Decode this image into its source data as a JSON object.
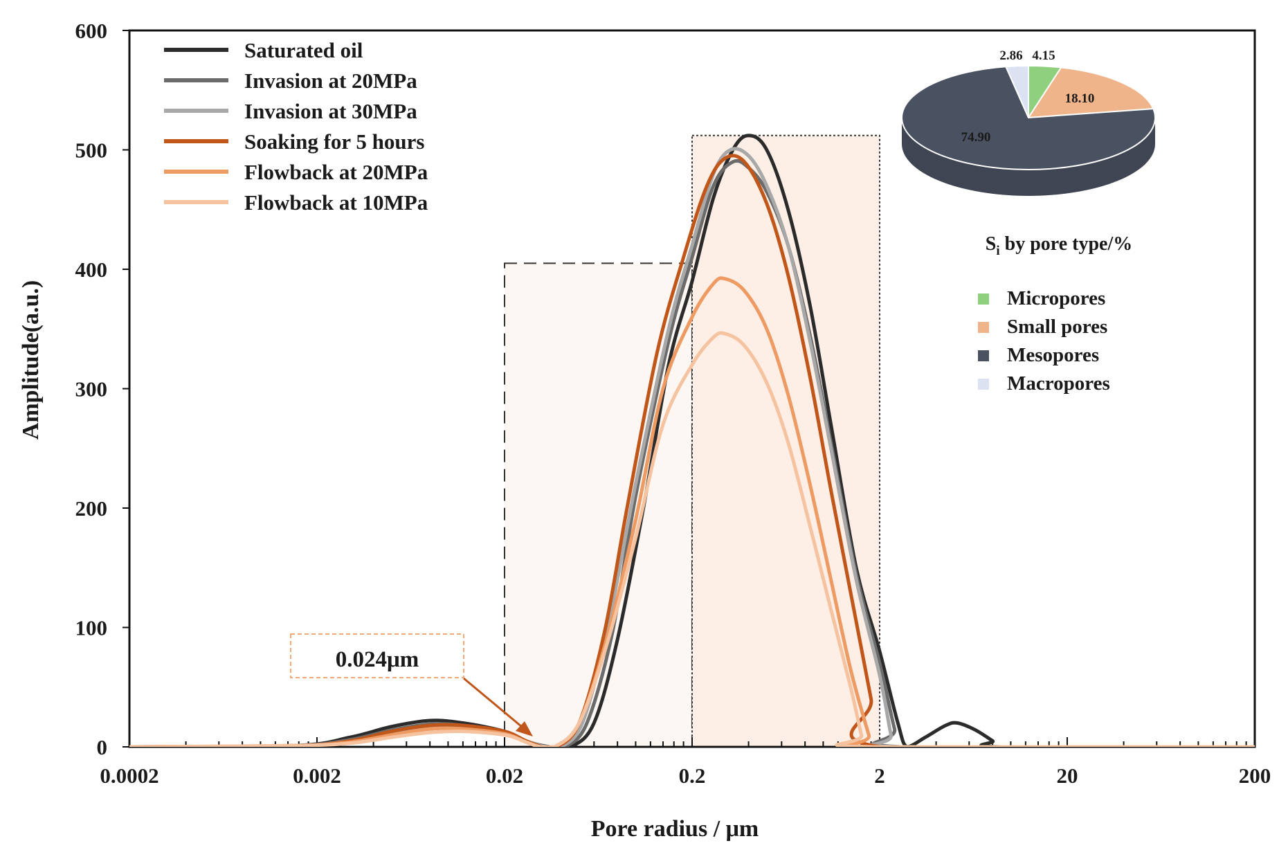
{
  "chart_data": {
    "type": "line",
    "xscale": "log",
    "xlim": [
      0.0002,
      200
    ],
    "ylim": [
      0,
      600
    ],
    "xlabel": "Pore radius  / μm",
    "ylabel": "Amplitude(a.u.)",
    "x_ticks": [
      "0.0002",
      "0.002",
      "0.02",
      "0.2",
      "2",
      "20",
      "200"
    ],
    "y_ticks": [
      "0",
      "100",
      "200",
      "300",
      "400",
      "500",
      "600"
    ],
    "grid": false,
    "legend_position": "top-left",
    "annotation": {
      "text": "0.024μm",
      "x": 0.024,
      "y": 5
    },
    "series": [
      {
        "name": "Saturated oil",
        "color": "#2b2b2b",
        "points": [
          [
            0.0002,
            0
          ],
          [
            0.0015,
            1
          ],
          [
            0.003,
            8
          ],
          [
            0.005,
            17
          ],
          [
            0.008,
            22
          ],
          [
            0.012,
            20
          ],
          [
            0.02,
            13
          ],
          [
            0.027,
            4
          ],
          [
            0.035,
            0
          ],
          [
            0.045,
            0
          ],
          [
            0.06,
            20
          ],
          [
            0.08,
            90
          ],
          [
            0.11,
            200
          ],
          [
            0.15,
            320
          ],
          [
            0.2,
            390
          ],
          [
            0.26,
            460
          ],
          [
            0.33,
            500
          ],
          [
            0.4,
            512
          ],
          [
            0.5,
            500
          ],
          [
            0.65,
            450
          ],
          [
            0.85,
            370
          ],
          [
            1.1,
            270
          ],
          [
            1.5,
            150
          ],
          [
            2,
            80
          ],
          [
            2.5,
            20
          ],
          [
            2.8,
            0
          ],
          [
            3.5,
            8
          ],
          [
            4.5,
            18
          ],
          [
            5.2,
            20
          ],
          [
            6.5,
            14
          ],
          [
            8,
            5
          ],
          [
            9,
            0
          ],
          [
            200,
            0
          ]
        ]
      },
      {
        "name": "Invasion at 20MPa",
        "color": "#6b6b6b",
        "points": [
          [
            0.0002,
            0
          ],
          [
            0.0015,
            1
          ],
          [
            0.003,
            6
          ],
          [
            0.005,
            14
          ],
          [
            0.008,
            19
          ],
          [
            0.012,
            18
          ],
          [
            0.02,
            12
          ],
          [
            0.027,
            4
          ],
          [
            0.034,
            0
          ],
          [
            0.042,
            0
          ],
          [
            0.055,
            20
          ],
          [
            0.075,
            95
          ],
          [
            0.1,
            210
          ],
          [
            0.15,
            340
          ],
          [
            0.2,
            410
          ],
          [
            0.26,
            470
          ],
          [
            0.33,
            490
          ],
          [
            0.4,
            485
          ],
          [
            0.5,
            465
          ],
          [
            0.65,
            420
          ],
          [
            0.85,
            345
          ],
          [
            1.1,
            255
          ],
          [
            1.5,
            145
          ],
          [
            2,
            70
          ],
          [
            2.4,
            15
          ],
          [
            2.6,
            0
          ],
          [
            200,
            0
          ]
        ]
      },
      {
        "name": "Invasion at 30MPa",
        "color": "#a8a8a8",
        "points": [
          [
            0.0002,
            0
          ],
          [
            0.0015,
            1
          ],
          [
            0.003,
            5
          ],
          [
            0.005,
            12
          ],
          [
            0.008,
            17
          ],
          [
            0.012,
            17
          ],
          [
            0.02,
            11
          ],
          [
            0.027,
            4
          ],
          [
            0.033,
            0
          ],
          [
            0.04,
            0
          ],
          [
            0.052,
            20
          ],
          [
            0.07,
            95
          ],
          [
            0.1,
            220
          ],
          [
            0.15,
            350
          ],
          [
            0.2,
            420
          ],
          [
            0.26,
            480
          ],
          [
            0.32,
            500
          ],
          [
            0.4,
            495
          ],
          [
            0.5,
            470
          ],
          [
            0.65,
            420
          ],
          [
            0.85,
            340
          ],
          [
            1.1,
            250
          ],
          [
            1.5,
            140
          ],
          [
            2,
            60
          ],
          [
            2.3,
            10
          ],
          [
            2.45,
            0
          ],
          [
            200,
            0
          ]
        ]
      },
      {
        "name": "Soaking for 5 hours",
        "color": "#c0561a",
        "points": [
          [
            0.0002,
            0
          ],
          [
            0.0015,
            1
          ],
          [
            0.003,
            5
          ],
          [
            0.005,
            13
          ],
          [
            0.008,
            18
          ],
          [
            0.012,
            18
          ],
          [
            0.02,
            13
          ],
          [
            0.026,
            5
          ],
          [
            0.032,
            0
          ],
          [
            0.038,
            0
          ],
          [
            0.05,
            20
          ],
          [
            0.068,
            95
          ],
          [
            0.09,
            200
          ],
          [
            0.13,
            330
          ],
          [
            0.18,
            410
          ],
          [
            0.24,
            470
          ],
          [
            0.3,
            493
          ],
          [
            0.38,
            490
          ],
          [
            0.5,
            455
          ],
          [
            0.65,
            395
          ],
          [
            0.85,
            310
          ],
          [
            1.1,
            215
          ],
          [
            1.5,
            105
          ],
          [
            1.8,
            40
          ],
          [
            2.05,
            0
          ],
          [
            200,
            0
          ]
        ]
      },
      {
        "name": "Flowback at 20MPa",
        "color": "#ee9a63",
        "points": [
          [
            0.0002,
            0
          ],
          [
            0.0015,
            1
          ],
          [
            0.003,
            4
          ],
          [
            0.005,
            10
          ],
          [
            0.008,
            15
          ],
          [
            0.012,
            15
          ],
          [
            0.02,
            11
          ],
          [
            0.026,
            4
          ],
          [
            0.031,
            0
          ],
          [
            0.037,
            0
          ],
          [
            0.05,
            20
          ],
          [
            0.07,
            90
          ],
          [
            0.1,
            190
          ],
          [
            0.14,
            300
          ],
          [
            0.2,
            360
          ],
          [
            0.26,
            388
          ],
          [
            0.3,
            392
          ],
          [
            0.38,
            382
          ],
          [
            0.5,
            350
          ],
          [
            0.65,
            295
          ],
          [
            0.85,
            220
          ],
          [
            1.1,
            140
          ],
          [
            1.4,
            65
          ],
          [
            1.75,
            10
          ],
          [
            1.85,
            0
          ],
          [
            200,
            0
          ]
        ]
      },
      {
        "name": "Flowback at 10MPa",
        "color": "#f6c3a0",
        "points": [
          [
            0.0002,
            0
          ],
          [
            0.0015,
            1
          ],
          [
            0.003,
            3
          ],
          [
            0.005,
            8
          ],
          [
            0.008,
            12
          ],
          [
            0.012,
            13
          ],
          [
            0.02,
            10
          ],
          [
            0.026,
            4
          ],
          [
            0.031,
            0
          ],
          [
            0.037,
            0
          ],
          [
            0.05,
            20
          ],
          [
            0.07,
            85
          ],
          [
            0.1,
            175
          ],
          [
            0.14,
            270
          ],
          [
            0.2,
            320
          ],
          [
            0.26,
            343
          ],
          [
            0.3,
            346
          ],
          [
            0.38,
            336
          ],
          [
            0.5,
            305
          ],
          [
            0.65,
            255
          ],
          [
            0.85,
            185
          ],
          [
            1.1,
            115
          ],
          [
            1.4,
            50
          ],
          [
            1.6,
            10
          ],
          [
            1.7,
            0
          ],
          [
            200,
            0
          ]
        ]
      }
    ],
    "inset_pie": {
      "type": "pie",
      "title_main": "S",
      "title_sub": "i",
      "title_rest": " by pore type/%",
      "slices": [
        {
          "label": "Micropores",
          "value": 4.15,
          "text": "4.15",
          "color": "#8fd07e"
        },
        {
          "label": "Small pores",
          "value": 18.1,
          "text": "18.10",
          "color": "#f0b48a"
        },
        {
          "label": "Mesopores",
          "value": 74.9,
          "text": "74.90",
          "color": "#4a5160"
        },
        {
          "label": "Macropores",
          "value": 2.86,
          "text": "2.86",
          "color": "#dde2f2"
        }
      ]
    }
  }
}
